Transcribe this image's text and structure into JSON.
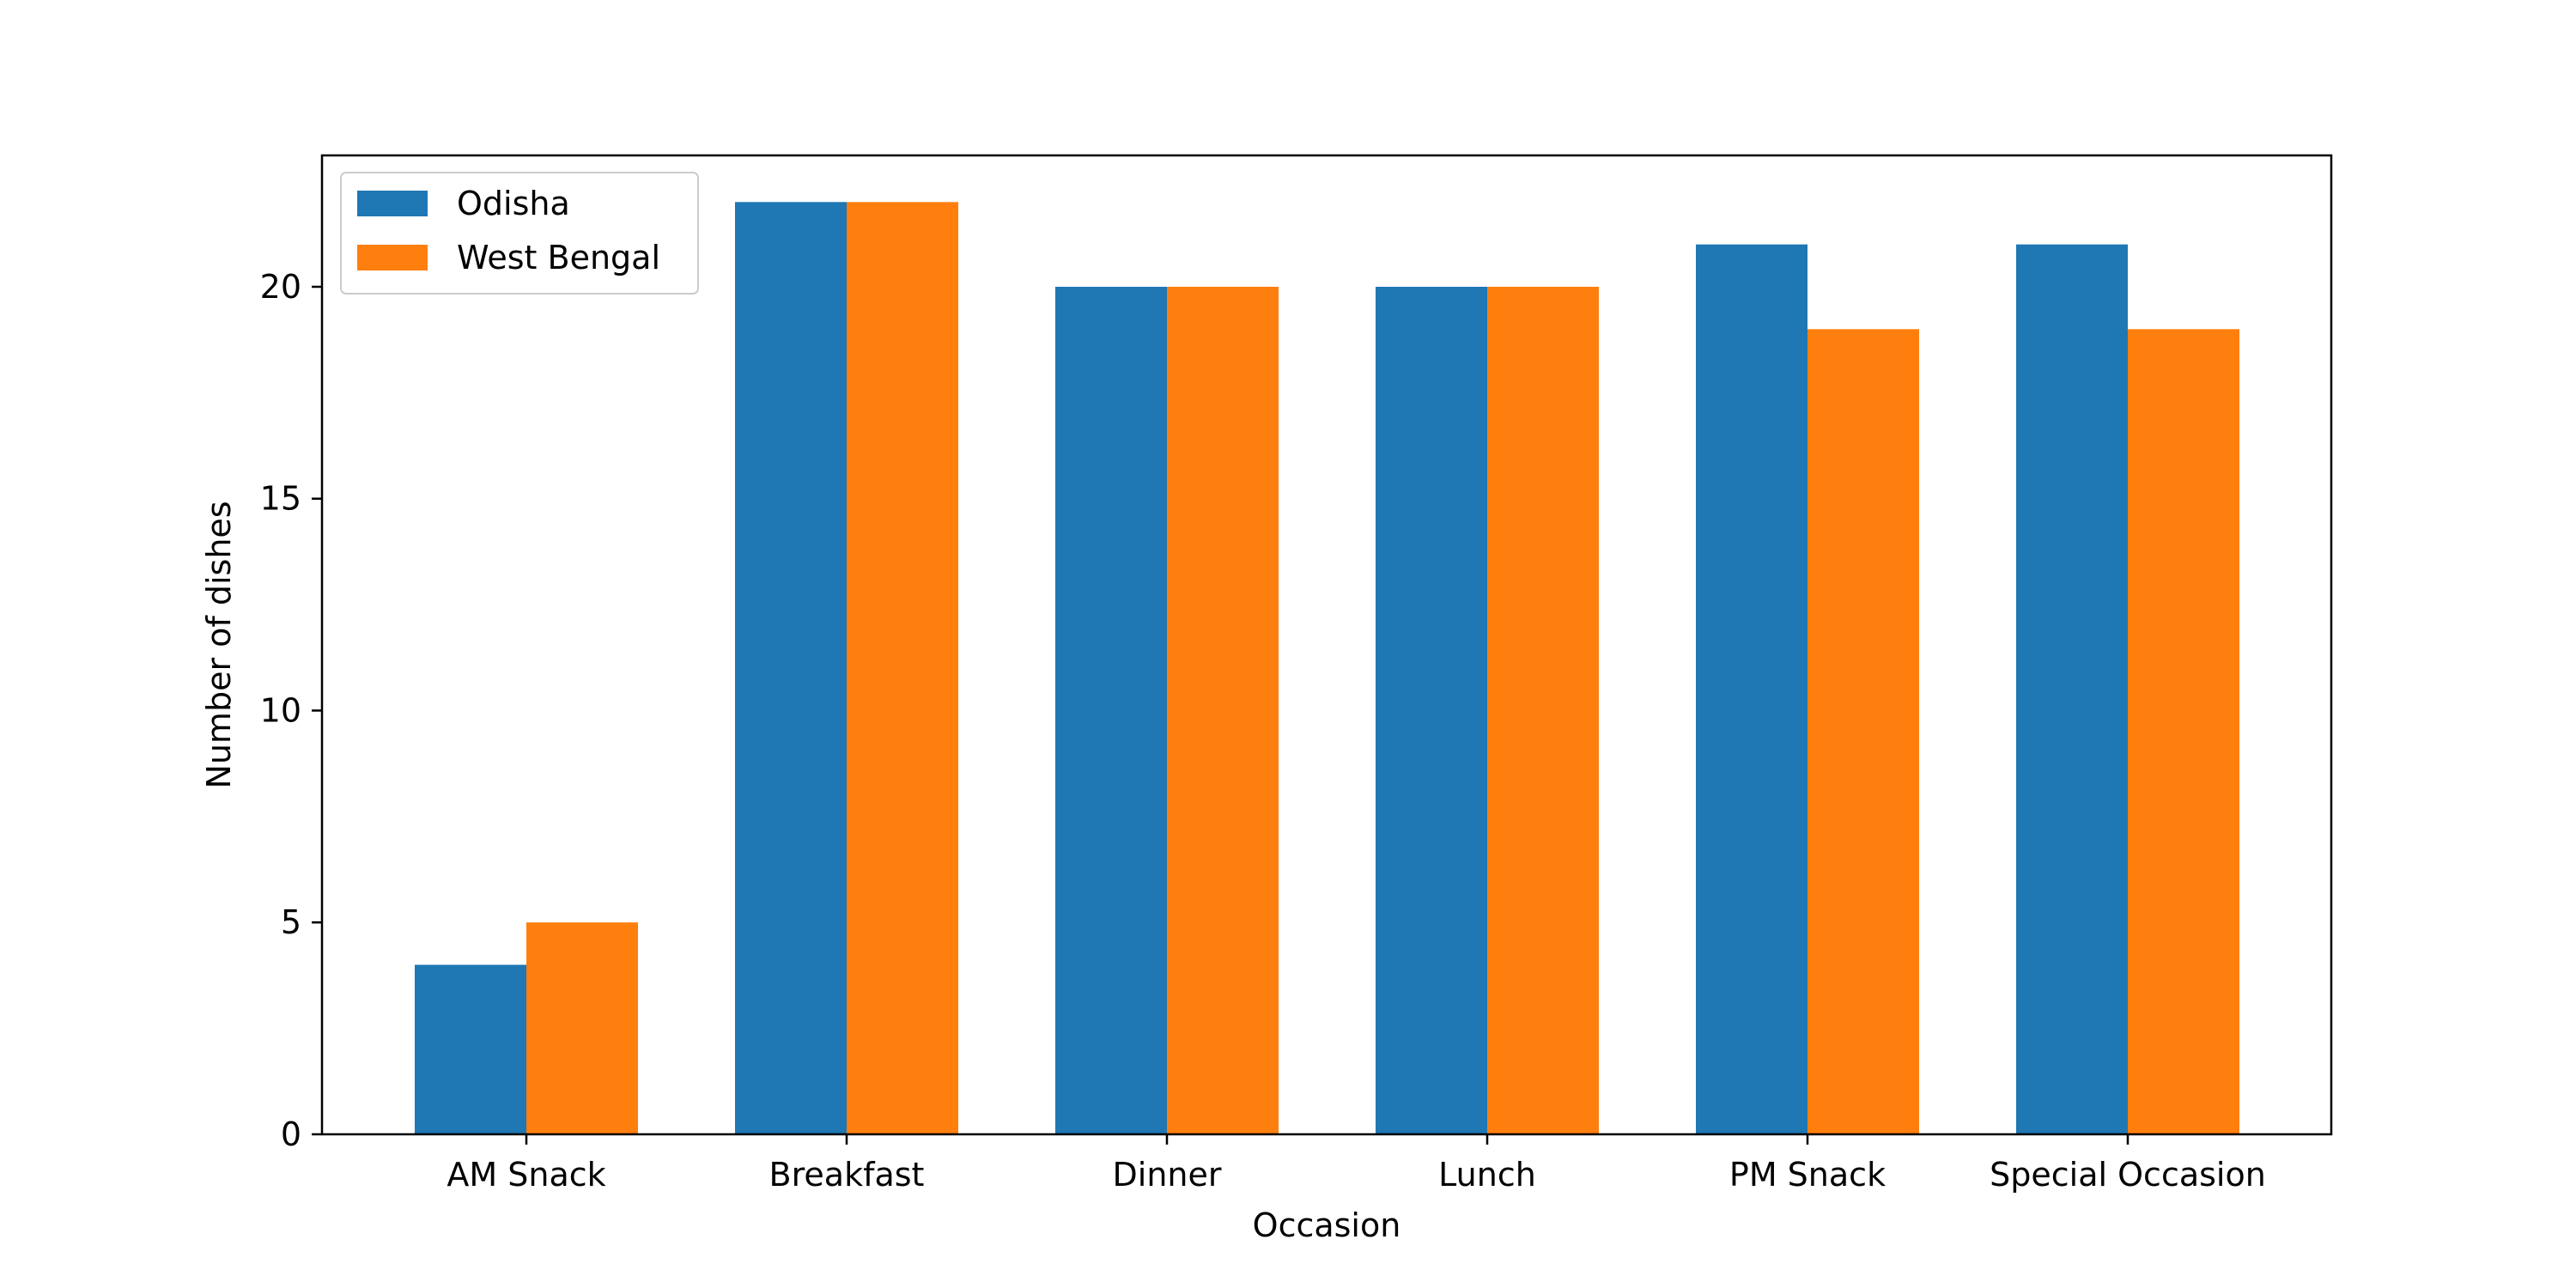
{
  "chart_data": {
    "type": "bar",
    "title": "",
    "xlabel": "Occasion",
    "ylabel": "Number of dishes",
    "categories": [
      "AM Snack",
      "Breakfast",
      "Dinner",
      "Lunch",
      "PM Snack",
      "Special Occasion"
    ],
    "series": [
      {
        "name": "Odisha",
        "color": "#1f77b4",
        "values": [
          4,
          22,
          20,
          20,
          21,
          21
        ]
      },
      {
        "name": "West Bengal",
        "color": "#ff7f0e",
        "values": [
          5,
          22,
          20,
          20,
          19,
          19
        ]
      }
    ],
    "ylim": [
      0,
      23.1
    ],
    "yticks": [
      0,
      5,
      10,
      15,
      20
    ],
    "grid": false,
    "legend": "top-left"
  }
}
